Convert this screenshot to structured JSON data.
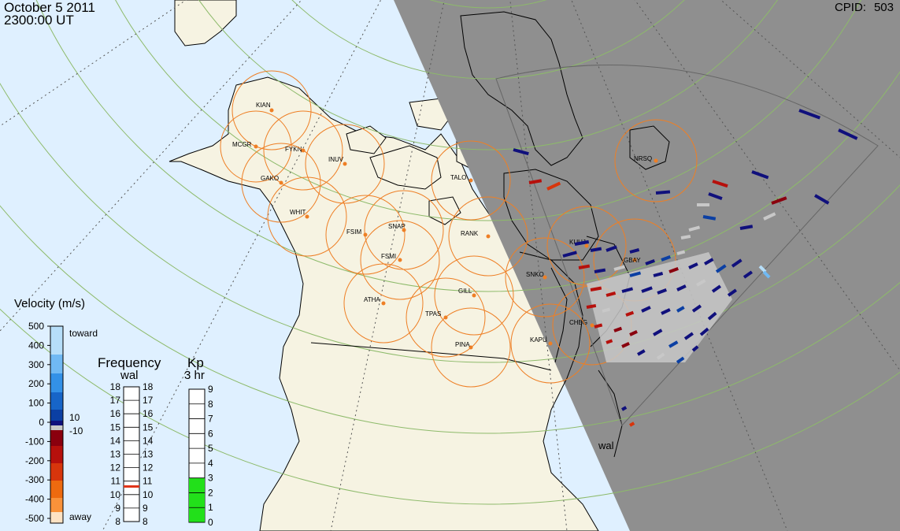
{
  "header": {
    "date": "October  5 2011",
    "time": "2300:00 UT",
    "cpid_label": "CPID:",
    "cpid_value": "503"
  },
  "map": {
    "day_color": "#dff0ff",
    "land_color": "#f6f3e2",
    "night_color": "#8f8f8f",
    "circle_color": "#ee7f25",
    "site_color": "#ee7f25",
    "radar_label": "wal",
    "sites": [
      "KIAN",
      "MCGR",
      "FYKN",
      "INUV",
      "GAKO",
      "WHIT",
      "FSIM",
      "SNAP",
      "FSMI",
      "RANK",
      "TALO",
      "NRSQ",
      "KUUJ",
      "GBAY",
      "SNKO",
      "GILL",
      "ATHA",
      "TPAS",
      "CHBG",
      "KAPU",
      "PINA"
    ]
  },
  "velocity_scale": {
    "title": "Velocity (m/s)",
    "ticks": [
      "500",
      "400",
      "300",
      "200",
      "100",
      "0",
      "-100",
      "-200",
      "-300",
      "-400",
      "-500"
    ],
    "toward_label": "toward",
    "away_label": "away",
    "threshold_pos": "10",
    "threshold_neg": "-10",
    "colors": [
      "#fde2c3",
      "#fcc48a",
      "#f9923a",
      "#ee6a0f",
      "#d7350c",
      "#b6100c",
      "#8a000e",
      "#c8c8c8",
      "#10107c",
      "#0b3fa3",
      "#1765c8",
      "#3391e7",
      "#70b9f3",
      "#b6def9"
    ]
  },
  "frequency_scale": {
    "title": "Frequency",
    "subtitle": "wal",
    "ticks": [
      "18",
      "17",
      "16",
      "15",
      "14",
      "13",
      "12",
      "11",
      "10",
      "9",
      "8"
    ],
    "current_mhz": 10.6,
    "marker_color": "#e0351a"
  },
  "kp_scale": {
    "title": "Kp",
    "subtitle": "3 hr",
    "ticks": [
      "9",
      "8",
      "7",
      "6",
      "5",
      "4",
      "3",
      "2",
      "1",
      "0"
    ],
    "value": 3,
    "fill_color": "#22e01a"
  }
}
